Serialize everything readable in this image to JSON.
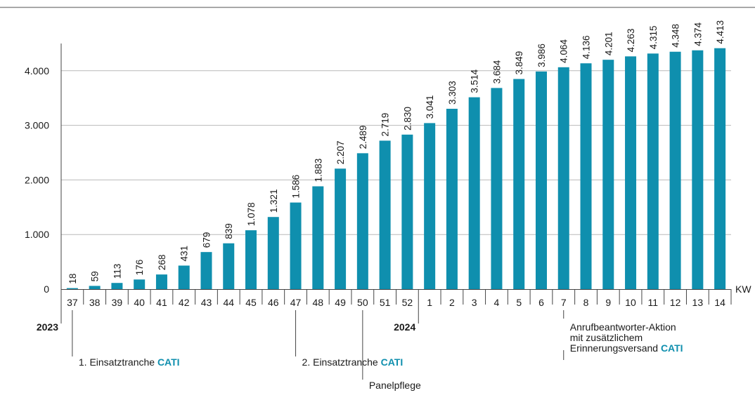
{
  "chart_data": {
    "type": "bar",
    "xlabel": "KW",
    "ylim": [
      0,
      4600
    ],
    "y_ticks": [
      "0",
      "1.000",
      "2.000",
      "3.000",
      "4.000"
    ],
    "y_tick_values": [
      0,
      1000,
      2000,
      3000,
      4000
    ],
    "grid": true,
    "bar_color": "#0f8fae",
    "categories": [
      "37",
      "38",
      "39",
      "40",
      "41",
      "42",
      "43",
      "44",
      "45",
      "46",
      "47",
      "48",
      "49",
      "50",
      "51",
      "52",
      "1",
      "2",
      "3",
      "4",
      "5",
      "6",
      "7",
      "8",
      "9",
      "10",
      "11",
      "12",
      "13",
      "14"
    ],
    "values": [
      18,
      59,
      113,
      176,
      268,
      431,
      679,
      839,
      1078,
      1321,
      1586,
      1883,
      2207,
      2489,
      2719,
      2830,
      3041,
      3303,
      3514,
      3684,
      3849,
      3986,
      4064,
      4136,
      4201,
      4263,
      4315,
      4348,
      4374,
      4413
    ],
    "value_labels": [
      "18",
      "59",
      "113",
      "176",
      "268",
      "431",
      "679",
      "839",
      "1.078",
      "1.321",
      "1.586",
      "1.883",
      "2.207",
      "2.489",
      "2.719",
      "2.830",
      "3.041",
      "3.303",
      "3.514",
      "3.684",
      "3.849",
      "3.986",
      "4.064",
      "4.136",
      "4.201",
      "4.263",
      "4.315",
      "4.348",
      "4.374",
      "4.413"
    ],
    "years": [
      {
        "label": "2023",
        "category_index": 0
      },
      {
        "label": "2024",
        "category_index": 16
      }
    ],
    "annotations": [
      {
        "category_index": 0,
        "lines": [
          {
            "text": "1. Einsatztranche ",
            "accent": "CATI"
          }
        ]
      },
      {
        "category_index": 10,
        "lines": [
          {
            "text": "2. Einsatztranche ",
            "accent": "CATI"
          }
        ]
      },
      {
        "category_index": 13,
        "lines": [
          {
            "text": "Panelpflege",
            "accent": ""
          }
        ]
      },
      {
        "category_index": 22,
        "lines": [
          {
            "text": "Anrufbeantworter-Aktion",
            "accent": ""
          },
          {
            "text": "mit zusätzlichem",
            "accent": ""
          },
          {
            "text": "Erinnerungsversand ",
            "accent": "CATI"
          }
        ]
      }
    ]
  }
}
